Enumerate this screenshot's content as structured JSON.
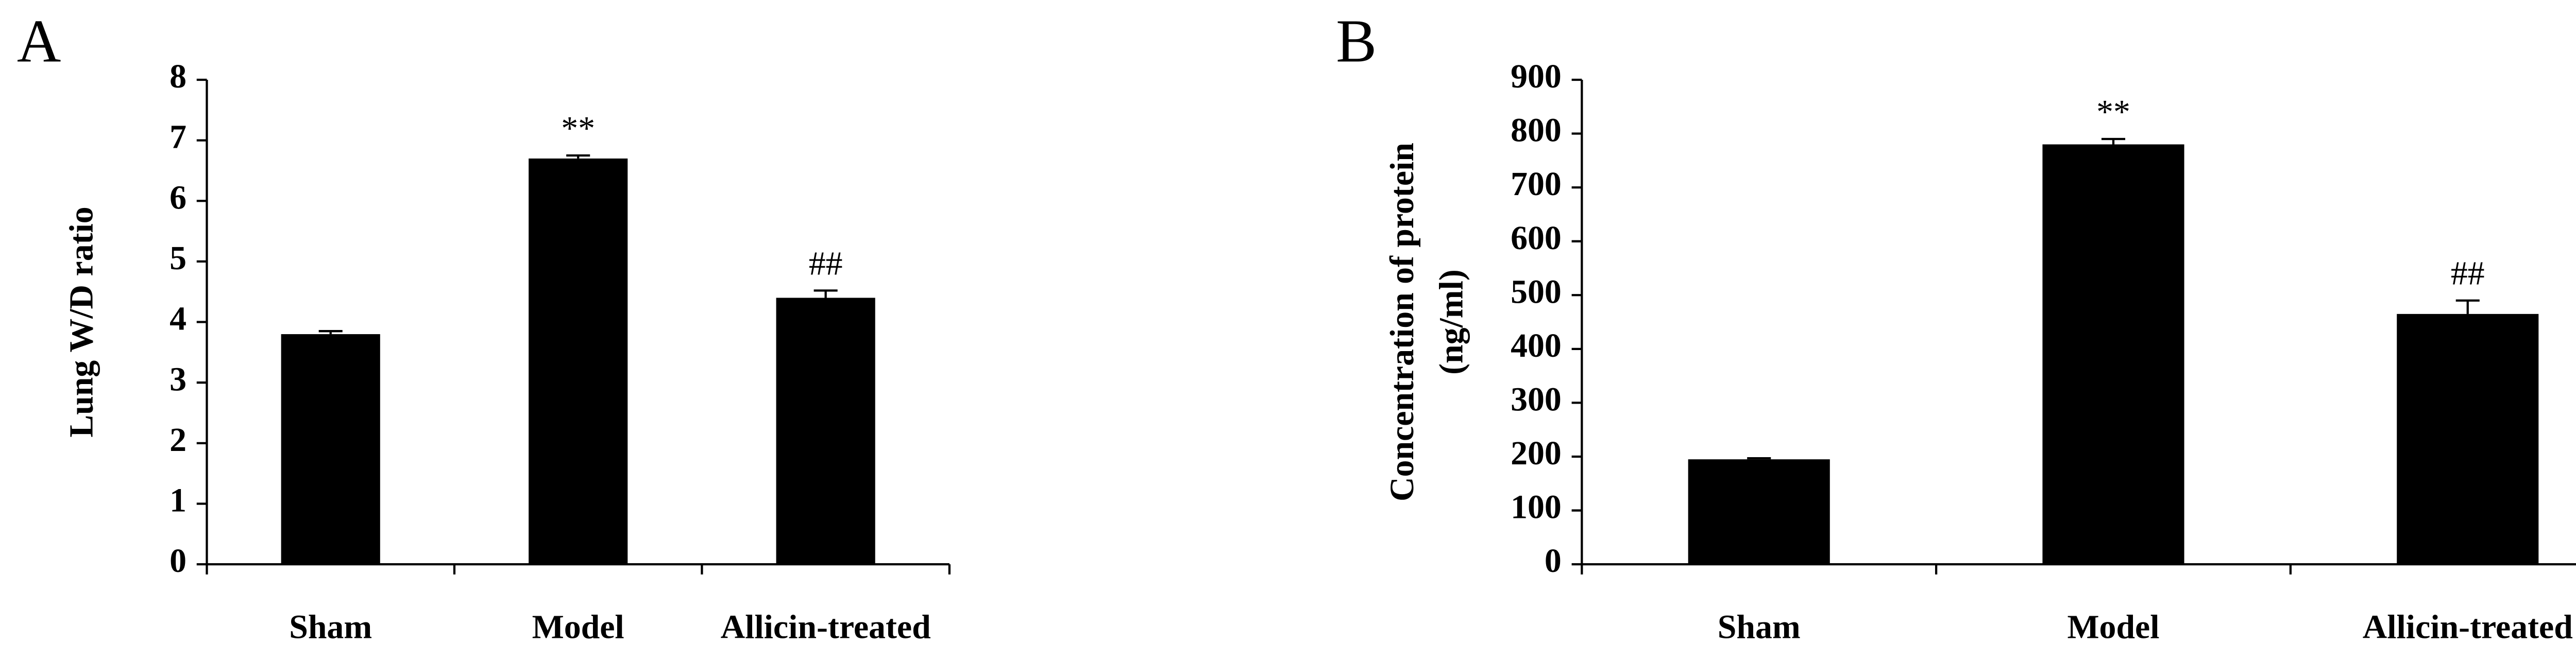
{
  "chart_data": [
    {
      "type": "bar",
      "panel": "A",
      "ylabel": [
        "Lung W/D ratio"
      ],
      "categories": [
        "Sham",
        "Model",
        "Allicin-treated"
      ],
      "values": [
        3.8,
        6.7,
        4.4
      ],
      "errors": [
        0.05,
        0.05,
        0.12
      ],
      "annotations": [
        null,
        "**",
        "##"
      ],
      "color": "#000000",
      "ylim": [
        0,
        8
      ],
      "yticks": [
        0,
        1,
        2,
        3,
        4,
        5,
        6,
        7,
        8
      ],
      "grid": false
    },
    {
      "type": "bar",
      "panel": "B",
      "ylabel": [
        "Concentration of protein",
        "(ng/ml)"
      ],
      "categories": [
        "Sham",
        "Model",
        "Allicin-treated"
      ],
      "values": [
        195,
        780,
        465
      ],
      "errors": [
        2,
        10,
        25
      ],
      "annotations": [
        null,
        "**",
        "##"
      ],
      "color": "#000000",
      "ylim": [
        0,
        900
      ],
      "yticks": [
        0,
        100,
        200,
        300,
        400,
        500,
        600,
        700,
        800,
        900
      ],
      "grid": false
    }
  ]
}
